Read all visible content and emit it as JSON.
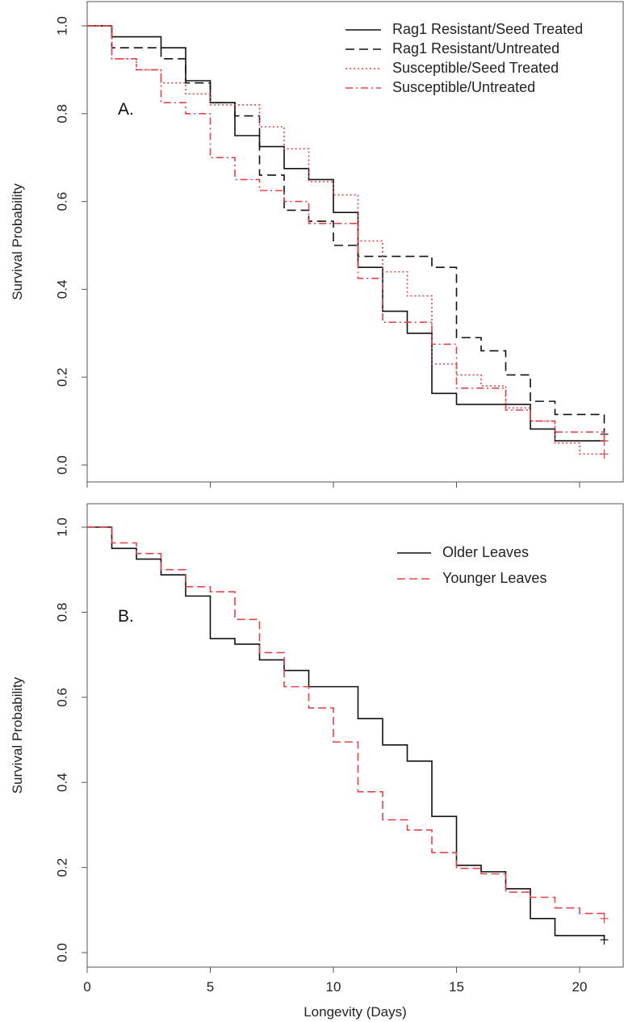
{
  "chart_data": [
    {
      "type": "line",
      "step": true,
      "panel_label": "A.",
      "title": "",
      "xlabel": "",
      "ylabel": "Survival Probability",
      "xlim": [
        0,
        21
      ],
      "ylim": [
        0,
        1
      ],
      "x_ticks": [
        "0",
        "5",
        "10",
        "15",
        "20"
      ],
      "x_ticks_visible": false,
      "y_ticks": [
        "0.0",
        "0.2",
        "0.4",
        "0.6",
        "0.8",
        "1.0"
      ],
      "grid": false,
      "legend_position": "top-right",
      "series": [
        {
          "name": "Rag1 Resistant/Seed Treated",
          "color": "#111111",
          "dash": "solid",
          "times": [
            0,
            1,
            3,
            4,
            5,
            6,
            7,
            8,
            9,
            10,
            11,
            12,
            13,
            14,
            15,
            18,
            19,
            21
          ],
          "values": [
            1.0,
            0.975,
            0.95,
            0.875,
            0.825,
            0.75,
            0.725,
            0.675,
            0.65,
            0.575,
            0.45,
            0.35,
            0.3,
            0.163,
            0.138,
            0.082,
            0.055,
            0.055
          ]
        },
        {
          "name": "Rag1 Resistant/Untreated",
          "color": "#111111",
          "dash": "long-dash",
          "times": [
            0,
            1,
            3,
            4,
            5,
            6,
            7,
            8,
            9,
            10,
            11,
            14,
            15,
            16,
            17,
            18,
            19,
            21
          ],
          "values": [
            1.0,
            0.95,
            0.925,
            0.87,
            0.825,
            0.795,
            0.66,
            0.58,
            0.555,
            0.5,
            0.475,
            0.45,
            0.29,
            0.26,
            0.205,
            0.145,
            0.115,
            0.07
          ]
        },
        {
          "name": "Susceptible/Seed Treated",
          "color": "#e8434a",
          "dash": "dotted",
          "times": [
            0,
            1,
            2,
            3,
            4,
            5,
            7,
            8,
            9,
            10,
            11,
            12,
            13,
            14,
            15,
            16,
            17,
            18,
            19,
            20,
            21
          ],
          "values": [
            1.0,
            0.925,
            0.9,
            0.87,
            0.845,
            0.82,
            0.77,
            0.72,
            0.645,
            0.615,
            0.51,
            0.44,
            0.385,
            0.23,
            0.205,
            0.18,
            0.13,
            0.1,
            0.05,
            0.025,
            0.025
          ]
        },
        {
          "name": "Susceptible/Untreated",
          "color": "#e8434a",
          "dash": "dash-dot",
          "times": [
            0,
            1,
            2,
            3,
            4,
            5,
            6,
            7,
            8,
            9,
            11,
            12,
            14,
            15,
            17,
            18,
            19,
            21
          ],
          "values": [
            1.0,
            0.925,
            0.9,
            0.825,
            0.8,
            0.7,
            0.65,
            0.625,
            0.6,
            0.55,
            0.425,
            0.325,
            0.275,
            0.175,
            0.125,
            0.1,
            0.075,
            0.055
          ]
        }
      ]
    },
    {
      "type": "line",
      "step": true,
      "panel_label": "B.",
      "title": "",
      "xlabel": "Longevity (Days)",
      "ylabel": "Survival Probability",
      "xlim": [
        0,
        21
      ],
      "ylim": [
        0,
        1
      ],
      "x_ticks": [
        "0",
        "5",
        "10",
        "15",
        "20"
      ],
      "x_ticks_visible": true,
      "y_ticks": [
        "0.0",
        "0.2",
        "0.4",
        "0.6",
        "0.8",
        "1.0"
      ],
      "grid": false,
      "legend_position": "top-right",
      "series": [
        {
          "name": "Older Leaves",
          "color": "#111111",
          "dash": "solid",
          "times": [
            0,
            1,
            2,
            3,
            4,
            5,
            6,
            7,
            8,
            9,
            11,
            12,
            13,
            14,
            15,
            16,
            17,
            18,
            19,
            21
          ],
          "values": [
            1.0,
            0.95,
            0.925,
            0.888,
            0.838,
            0.738,
            0.725,
            0.688,
            0.663,
            0.625,
            0.55,
            0.488,
            0.45,
            0.32,
            0.205,
            0.19,
            0.15,
            0.08,
            0.04,
            0.03
          ]
        },
        {
          "name": "Younger Leaves",
          "color": "#e8434a",
          "dash": "dash",
          "times": [
            0,
            1,
            2,
            3,
            4,
            5,
            6,
            7,
            8,
            9,
            10,
            11,
            12,
            13,
            14,
            15,
            16,
            17,
            18,
            19,
            20,
            21
          ],
          "values": [
            1.0,
            0.963,
            0.938,
            0.9,
            0.86,
            0.848,
            0.783,
            0.705,
            0.625,
            0.575,
            0.495,
            0.378,
            0.312,
            0.288,
            0.235,
            0.198,
            0.185,
            0.142,
            0.13,
            0.105,
            0.092,
            0.08
          ]
        }
      ]
    }
  ]
}
